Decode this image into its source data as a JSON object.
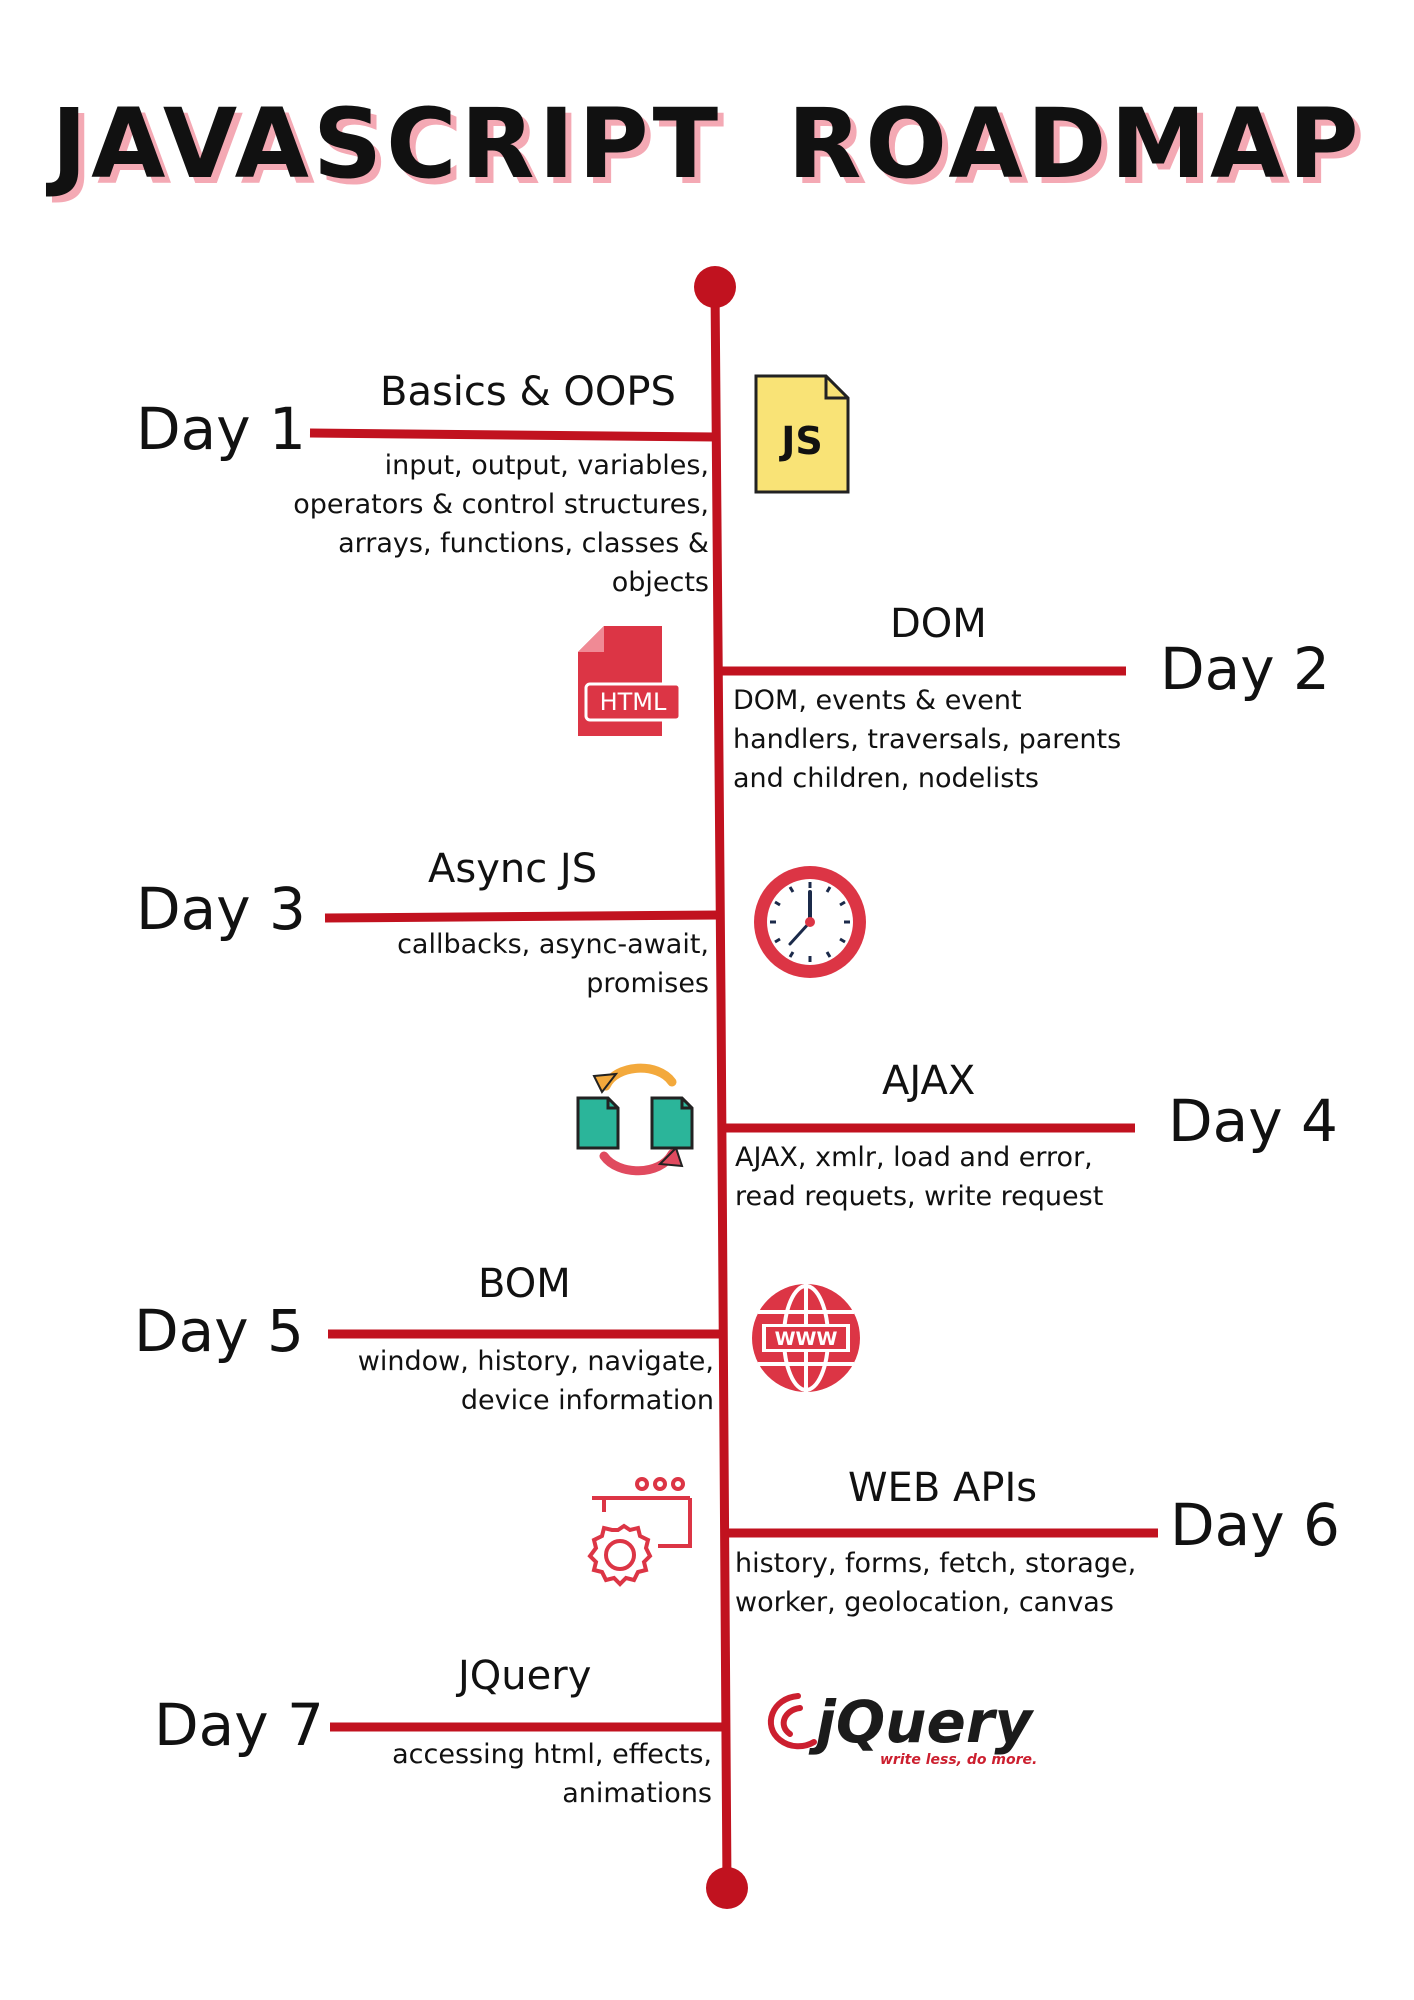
{
  "title": "JAVASCRIPT  ROADMAP",
  "colors": {
    "accent": "#c1121f",
    "title_shadow": "#f4a9b4",
    "js_yellow": "#f9e376",
    "teal": "#2bb59a",
    "orange": "#f3a93c"
  },
  "steps": [
    {
      "day": "Day 1",
      "topic": "Basics & OOPS",
      "details": "input, output, variables,\noperators & control structures,\narrays, functions, classes &\nobjects",
      "icon": "js-file-icon",
      "icon_text": "JS"
    },
    {
      "day": "Day 2",
      "topic": "DOM",
      "details": "DOM, events & event\nhandlers, traversals, parents\nand children, nodelists",
      "icon": "html-file-icon",
      "icon_text": "HTML"
    },
    {
      "day": "Day 3",
      "topic": "Async JS",
      "details": "callbacks, async-await,\npromises",
      "icon": "clock-icon"
    },
    {
      "day": "Day 4",
      "topic": "AJAX",
      "details": "AJAX, xmlr, load and error,\nread requets, write request",
      "icon": "file-sync-icon"
    },
    {
      "day": "Day 5",
      "topic": "BOM",
      "details": "window, history, navigate,\ndevice information",
      "icon": "www-globe-icon",
      "icon_text": "WWW"
    },
    {
      "day": "Day 6",
      "topic": "WEB APIs",
      "details": "history, forms, fetch, storage,\nworker, geolocation, canvas",
      "icon": "web-settings-icon"
    },
    {
      "day": "Day 7",
      "topic": "JQuery",
      "details": "accessing html, effects,\nanimations",
      "icon": "jquery-logo-icon",
      "logo_wordmark": "jQuery",
      "logo_tagline": "write less, do more."
    }
  ]
}
